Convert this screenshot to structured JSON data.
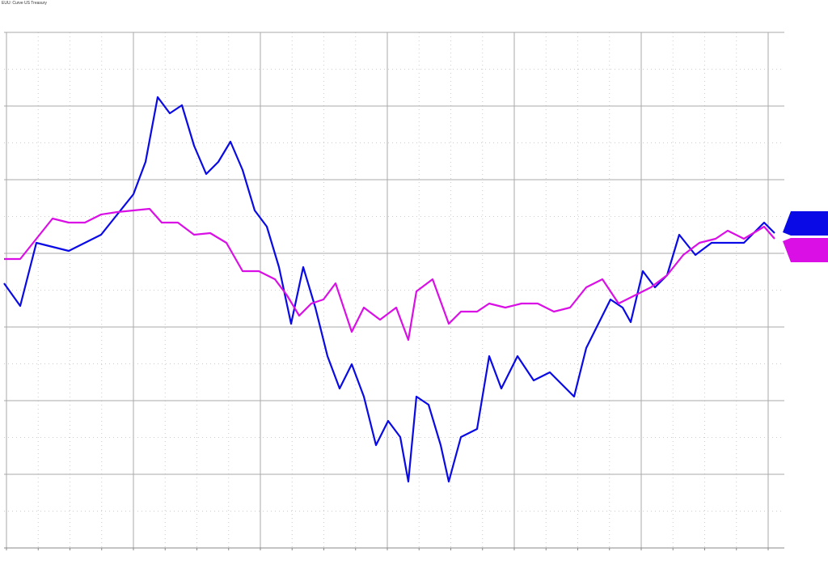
{
  "chart_data": {
    "type": "line",
    "title": "EUU: Curve US Treasury",
    "xlim": [
      0,
      953
    ],
    "ylim": [
      0,
      637
    ],
    "yticks": [
      0,
      91,
      182,
      273,
      364,
      455,
      546,
      637
    ],
    "grid": true,
    "series": [
      {
        "name": "Blue",
        "color": "#0a0ae6",
        "x": [
          0,
          20,
          40,
          60,
          80,
          100,
          120,
          140,
          160,
          175,
          190,
          205,
          220,
          235,
          250,
          265,
          280,
          295,
          310,
          325,
          340,
          355,
          370,
          385,
          400,
          415,
          430,
          445,
          460,
          475,
          490,
          500,
          510,
          525,
          540,
          550,
          565,
          585,
          600,
          615,
          635,
          655,
          675,
          695,
          705,
          720,
          735,
          750,
          765,
          775,
          790,
          805,
          820,
          835,
          855,
          875,
          895,
          915,
          940,
          953
        ],
        "values": [
          327,
          299,
          377,
          372,
          367,
          377,
          387,
          412,
          437,
          477,
          557,
          537,
          547,
          497,
          462,
          477,
          502,
          467,
          417,
          397,
          347,
          277,
          347,
          297,
          237,
          197,
          227,
          187,
          127,
          157,
          137,
          82,
          187,
          177,
          127,
          82,
          137,
          147,
          237,
          197,
          237,
          207,
          217,
          197,
          187,
          247,
          277,
          307,
          297,
          279,
          342,
          322,
          337,
          387,
          362,
          377,
          377,
          377,
          402,
          389
        ]
      },
      {
        "name": "Magenta",
        "color": "#d90fe6",
        "x": [
          0,
          20,
          40,
          60,
          80,
          100,
          120,
          140,
          160,
          180,
          195,
          215,
          235,
          255,
          275,
          295,
          315,
          335,
          350,
          365,
          380,
          395,
          410,
          430,
          445,
          465,
          485,
          500,
          510,
          530,
          550,
          565,
          585,
          600,
          620,
          640,
          660,
          680,
          700,
          720,
          740,
          760,
          780,
          800,
          820,
          840,
          860,
          880,
          895,
          915,
          940,
          953
        ],
        "values": [
          357,
          357,
          382,
          407,
          402,
          402,
          412,
          415,
          417,
          419,
          402,
          402,
          387,
          389,
          377,
          342,
          342,
          332,
          312,
          287,
          302,
          307,
          327,
          267,
          297,
          282,
          297,
          257,
          317,
          332,
          277,
          292,
          292,
          302,
          297,
          302,
          302,
          292,
          297,
          322,
          332,
          302,
          312,
          322,
          337,
          362,
          377,
          382,
          392,
          382,
          397,
          382
        ]
      }
    ]
  }
}
